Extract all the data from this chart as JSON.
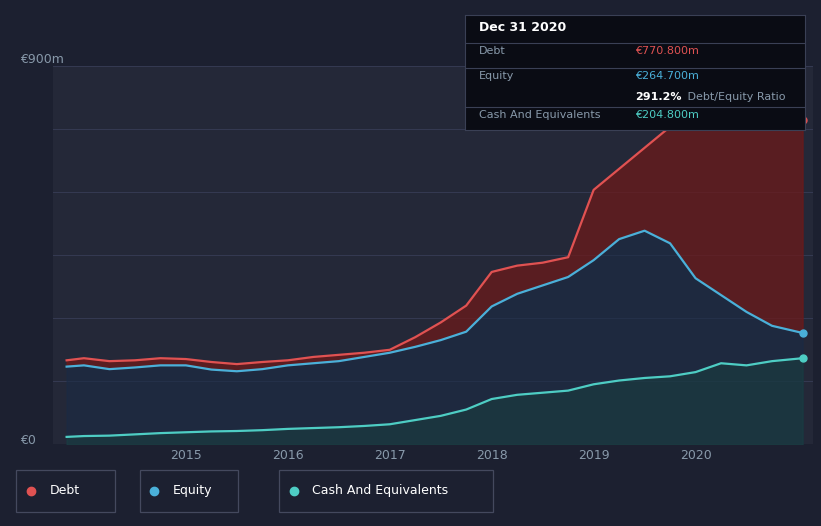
{
  "background_color": "#1c2030",
  "plot_bg_color": "#242838",
  "grid_color": "#353a52",
  "title_box": {
    "date": "Dec 31 2020",
    "debt_label": "Debt",
    "debt_value": "€770.800m",
    "equity_label": "Equity",
    "equity_value": "€264.700m",
    "ratio_bold": "291.2%",
    "ratio_rest": " Debt/Equity Ratio",
    "cash_label": "Cash And Equivalents",
    "cash_value": "€204.800m"
  },
  "ylabel_top": "€900m",
  "ylabel_bottom": "€0",
  "x_ticks": [
    2015,
    2016,
    2017,
    2018,
    2019,
    2020
  ],
  "debt_color": "#e05252",
  "equity_color": "#4ab0d9",
  "cash_color": "#4ecdc4",
  "debt_fill_color": "#6b1a1a",
  "equity_fill_color": "#1a2b45",
  "cash_fill_color": "#1a4040",
  "legend_border_color": "#44495e",
  "label_color": "#8899aa",
  "tick_color": "#8899aa",
  "time": [
    2013.83,
    2014.0,
    2014.25,
    2014.5,
    2014.75,
    2015.0,
    2015.25,
    2015.5,
    2015.75,
    2016.0,
    2016.25,
    2016.5,
    2016.75,
    2017.0,
    2017.25,
    2017.5,
    2017.75,
    2018.0,
    2018.25,
    2018.5,
    2018.75,
    2019.0,
    2019.25,
    2019.5,
    2019.75,
    2020.0,
    2020.25,
    2020.5,
    2020.75,
    2021.05
  ],
  "debt": [
    200,
    205,
    198,
    200,
    205,
    203,
    196,
    191,
    196,
    200,
    208,
    213,
    218,
    225,
    255,
    290,
    330,
    410,
    425,
    432,
    445,
    605,
    655,
    705,
    755,
    825,
    855,
    835,
    792,
    771
  ],
  "equity": [
    185,
    188,
    179,
    183,
    188,
    188,
    178,
    174,
    179,
    188,
    193,
    198,
    208,
    218,
    232,
    248,
    268,
    328,
    358,
    378,
    398,
    438,
    488,
    508,
    478,
    395,
    355,
    315,
    282,
    265
  ],
  "cash": [
    18,
    20,
    21,
    24,
    27,
    29,
    31,
    32,
    34,
    37,
    39,
    41,
    44,
    48,
    58,
    68,
    83,
    108,
    118,
    123,
    128,
    143,
    152,
    158,
    162,
    172,
    193,
    188,
    198,
    205
  ],
  "xmin": 2013.7,
  "xmax": 2021.15,
  "ymin": 0,
  "ymax": 900
}
